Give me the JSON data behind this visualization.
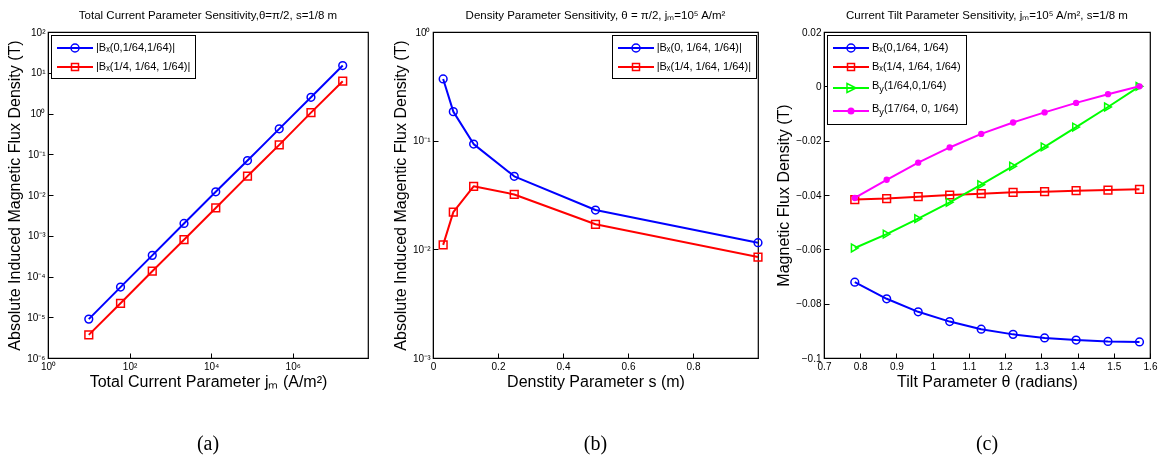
{
  "chart_data": [
    {
      "type": "line",
      "title": "Total Current Parameter Sensitivity,θ=π/2, s=1/8 m",
      "xlabel": "Total Current Parameter jₘ (A/m²)",
      "ylabel": "Absolute Induced Magnetic Flux Density (T)",
      "log": "xy",
      "legend": "top left",
      "annotations": [
        "(a)"
      ],
      "x": [
        10,
        60,
        360,
        2160,
        12960,
        77760,
        466560,
        2799360,
        16796160
      ],
      "series": [
        {
          "name": "|Bₓ(0,1/64,1/64)|",
          "color": "#0000ff",
          "marker": "circle",
          "values": [
            9e-06,
            5.5e-05,
            0.00033,
            0.002,
            0.012,
            0.07,
            0.42,
            2.5,
            15
          ]
        },
        {
          "name": "|Bₓ(1/4, 1/64, 1/64)|",
          "color": "#ff0000",
          "marker": "square",
          "values": [
            3.7e-06,
            2.2e-05,
            0.000135,
            0.0008,
            0.0048,
            0.029,
            0.17,
            1.05,
            6.2
          ]
        }
      ],
      "xlim": [
        1,
        70000000
      ],
      "xticks": [
        {
          "value": 1,
          "label": "10⁰"
        },
        {
          "value": 100,
          "label": "10²"
        },
        {
          "value": 10000,
          "label": "10⁴"
        },
        {
          "value": 1000000,
          "label": "10⁶"
        }
      ],
      "ylim": [
        1e-06,
        100
      ],
      "yticks": [
        {
          "value": 1e-06,
          "label": "10⁻⁶"
        },
        {
          "value": 1e-05,
          "label": "10⁻⁵"
        },
        {
          "value": 0.0001,
          "label": "10⁻⁴"
        },
        {
          "value": 0.001,
          "label": "10⁻³"
        },
        {
          "value": 0.01,
          "label": "10⁻²"
        },
        {
          "value": 0.1,
          "label": "10⁻¹"
        },
        {
          "value": 1,
          "label": "10⁰"
        },
        {
          "value": 10,
          "label": "10¹"
        },
        {
          "value": 100,
          "label": "10²"
        }
      ]
    },
    {
      "type": "line",
      "title": "Density Parameter Sensitivity, θ = π/2, jₘ=10⁵ A/m²",
      "xlabel": "Denstity Parameter s (m)",
      "ylabel": "Absolute Induced Magentic Flux Density (T)",
      "log": "y",
      "legend": "top right",
      "annotations": [
        "(b)"
      ],
      "x": [
        0.03125,
        0.0625,
        0.125,
        0.25,
        0.5,
        1
      ],
      "series": [
        {
          "name": "|Bₓ(0, 1/64, 1/64)|",
          "color": "#0000ff",
          "marker": "circle",
          "values": [
            0.37,
            0.185,
            0.093,
            0.047,
            0.023,
            0.0115
          ]
        },
        {
          "name": "|Bₓ(1/4, 1/64, 1/64)|",
          "color": "#ff0000",
          "marker": "square",
          "values": [
            0.011,
            0.022,
            0.038,
            0.032,
            0.017,
            0.0085
          ]
        }
      ],
      "xlim": [
        0,
        1
      ],
      "xticks": [
        0,
        0.2,
        0.4,
        0.6,
        0.8
      ],
      "ylim": [
        0.001,
        1
      ],
      "yticks": [
        {
          "value": 0.001,
          "label": "10⁻³"
        },
        {
          "value": 0.01,
          "label": "10⁻²"
        },
        {
          "value": 0.1,
          "label": "10⁻¹"
        },
        {
          "value": 1,
          "label": "10⁰"
        }
      ]
    },
    {
      "type": "line",
      "title": "Current Tilt Parameter Sensitivity, jₘ=10⁵ A/m², s=1/8 m",
      "xlabel": "Tilt Parameter θ (radians)",
      "ylabel": "Magnetic Flux Density (T)",
      "legend": "top left",
      "annotations": [
        "(c)"
      ],
      "x": [
        0.785,
        0.873,
        0.96,
        1.047,
        1.134,
        1.222,
        1.309,
        1.396,
        1.484,
        1.571
      ],
      "series": [
        {
          "name": "Bₓ(0,1/64, 1/64)",
          "color": "#0000ff",
          "marker": "circle",
          "values": [
            -0.0721,
            -0.0782,
            -0.083,
            -0.0866,
            -0.0894,
            -0.0913,
            -0.0926,
            -0.0934,
            -0.0939,
            -0.0941
          ]
        },
        {
          "name": "Bₓ(1/4, 1/64, 1/64)",
          "color": "#ff0000",
          "marker": "square",
          "values": [
            -0.0417,
            -0.0413,
            -0.0406,
            -0.04,
            -0.0395,
            -0.039,
            -0.0388,
            -0.0384,
            -0.0382,
            -0.0379
          ]
        },
        {
          "name": "B$_{y}$(1/64,0,1/64)",
          "color": "#00ff00",
          "marker": "triangle",
          "values": [
            -0.0595,
            -0.0544,
            -0.0487,
            -0.0427,
            -0.0362,
            -0.0294,
            -0.0223,
            -0.015,
            -0.0076,
            0
          ]
        },
        {
          "name": "B$_{y}$(17/64, 0, 1/64)",
          "color": "#ff00ff",
          "marker": "dot",
          "values": [
            -0.0411,
            -0.0344,
            -0.0281,
            -0.0225,
            -0.0175,
            -0.0133,
            -0.0096,
            -0.0061,
            -0.0029,
            0
          ]
        }
      ],
      "xlim": [
        0.7,
        1.6
      ],
      "xticks": [
        0.7,
        0.8,
        0.9,
        1,
        1.1,
        1.2,
        1.3,
        1.4,
        1.5,
        1.6
      ],
      "ylim": [
        -0.1,
        0.02
      ],
      "yticks": [
        -0.1,
        -0.08,
        -0.06,
        -0.04,
        -0.02,
        0,
        0.02
      ]
    }
  ]
}
